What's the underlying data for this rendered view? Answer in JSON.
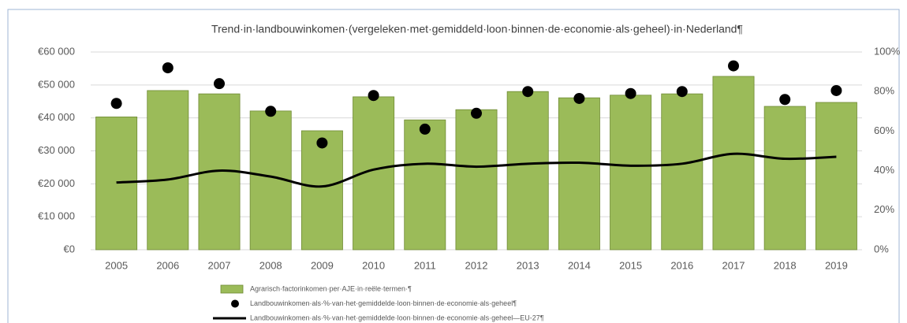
{
  "chart_data": {
    "type": "combo",
    "title": "Trend·in·landbouwinkomen·(vergeleken·met·gemiddeld·loon·binnen·de·economie·als·geheel)·in·Nederland¶",
    "categories": [
      "2005",
      "2006",
      "2007",
      "2008",
      "2009",
      "2010",
      "2011",
      "2012",
      "2013",
      "2014",
      "2015",
      "2016",
      "2017",
      "2018",
      "2019"
    ],
    "series": [
      {
        "name": "Agrarisch·factorinkomen·per·AJE·in·reële·termen·¶",
        "type": "bar",
        "color": "#9bbb59",
        "values": [
          40300,
          48300,
          47300,
          42100,
          36100,
          46400,
          39400,
          42500,
          48000,
          46100,
          46900,
          47300,
          52600,
          43500,
          44700
        ]
      },
      {
        "name": "Landbouwinkomen·als·%·van·het·gemiddelde·loon·binnen·de·economie·als·geheel¶",
        "type": "scatter",
        "color": "#000000",
        "axis": "y2",
        "values": [
          74,
          92,
          84,
          70,
          54,
          78,
          61,
          69,
          80,
          76.5,
          79,
          80,
          93,
          76,
          80.5
        ]
      },
      {
        "name": "Landbouwinkomen·als·%·van·het·gemiddelde·loon·binnen·de·economie·als·geheel—EU-27¶",
        "type": "line",
        "color": "#000000",
        "axis": "y2",
        "values": [
          34,
          35.5,
          40,
          37,
          32,
          40.5,
          43.5,
          42,
          43.5,
          44,
          42.5,
          43.5,
          48.5,
          46,
          47
        ]
      }
    ],
    "ylim": [
      0,
      60000
    ],
    "yticks": [
      {
        "value": 0,
        "label": "€0"
      },
      {
        "value": 10000,
        "label": "€10 000"
      },
      {
        "value": 20000,
        "label": "€20 000"
      },
      {
        "value": 30000,
        "label": "€30 000"
      },
      {
        "value": 40000,
        "label": "€40 000"
      },
      {
        "value": 50000,
        "label": "€50 000"
      },
      {
        "value": 60000,
        "label": "€60 000"
      }
    ],
    "y2lim": [
      0,
      100
    ],
    "y2ticks": [
      {
        "value": 0,
        "label": "0%"
      },
      {
        "value": 20,
        "label": "20%"
      },
      {
        "value": 40,
        "label": "40%"
      },
      {
        "value": 60,
        "label": "60%"
      },
      {
        "value": 80,
        "label": "80%"
      },
      {
        "value": 100,
        "label": "100%"
      }
    ],
    "grid": true,
    "legend": "bottom"
  }
}
